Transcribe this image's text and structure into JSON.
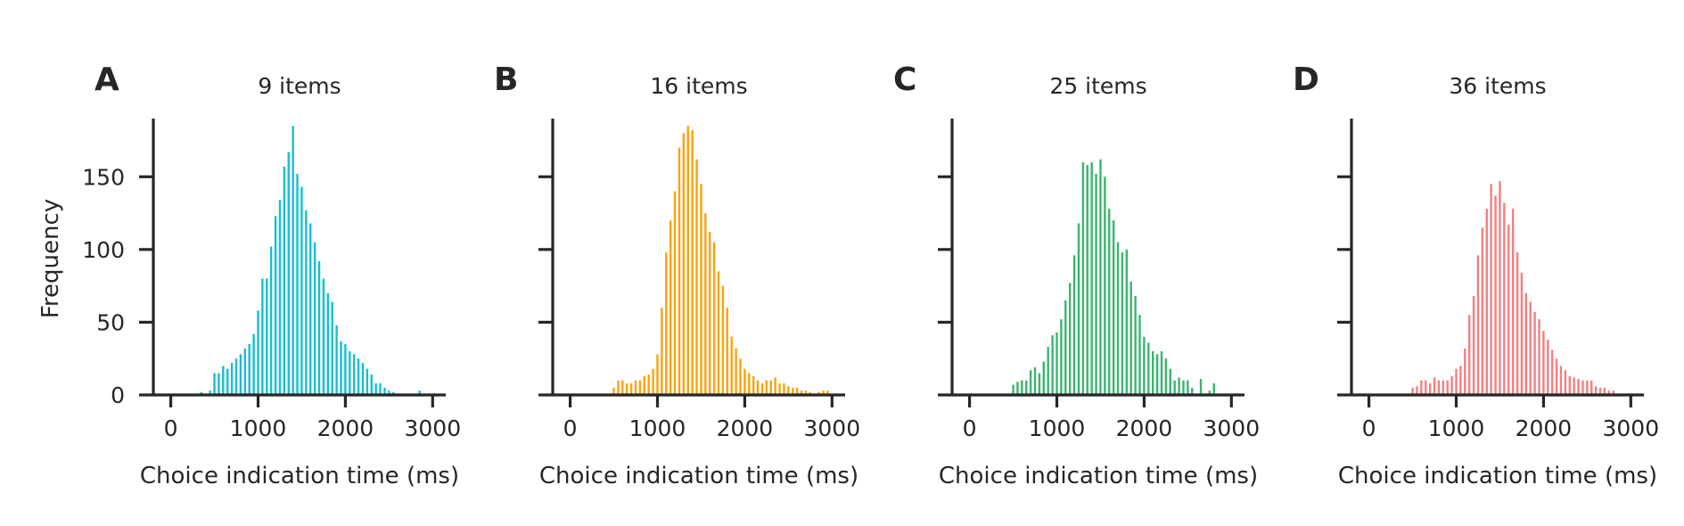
{
  "figure": {
    "ylabel": "Frequency",
    "xlabel": "Choice indication time (ms)"
  },
  "chart_data": [
    {
      "type": "bar",
      "panel": "A",
      "title": "9 items",
      "xlabel": "Choice indication time (ms)",
      "ylabel": "Frequency",
      "xlim": [
        -200,
        3150
      ],
      "ylim": [
        0,
        190
      ],
      "xticks": [
        0,
        1000,
        2000,
        3000
      ],
      "yticks": [
        0,
        50,
        100,
        150
      ],
      "grid": false,
      "color": "#17becf",
      "bin_width": 50,
      "x": [
        350,
        450,
        500,
        550,
        600,
        650,
        700,
        750,
        800,
        850,
        900,
        950,
        1000,
        1050,
        1100,
        1150,
        1200,
        1250,
        1300,
        1350,
        1400,
        1450,
        1500,
        1550,
        1600,
        1650,
        1700,
        1750,
        1800,
        1850,
        1900,
        1950,
        2000,
        2050,
        2100,
        2150,
        2200,
        2250,
        2300,
        2350,
        2400,
        2450,
        2500,
        2550,
        2850
      ],
      "values": [
        2,
        3,
        15,
        15,
        20,
        18,
        22,
        25,
        28,
        32,
        35,
        42,
        58,
        80,
        80,
        102,
        123,
        134,
        157,
        167,
        185,
        152,
        143,
        127,
        118,
        105,
        92,
        80,
        70,
        64,
        48,
        37,
        35,
        30,
        28,
        25,
        22,
        18,
        14,
        8,
        8,
        5,
        3,
        2,
        3
      ]
    },
    {
      "type": "bar",
      "panel": "B",
      "title": "16 items",
      "xlabel": "Choice indication time (ms)",
      "ylabel": "",
      "xlim": [
        -200,
        3150
      ],
      "ylim": [
        0,
        190
      ],
      "xticks": [
        0,
        1000,
        2000,
        3000
      ],
      "yticks": [
        0,
        50,
        100,
        150
      ],
      "grid": false,
      "color": "#f5a40f",
      "bin_width": 50,
      "x": [
        500,
        550,
        600,
        650,
        700,
        750,
        800,
        850,
        900,
        950,
        1000,
        1050,
        1100,
        1150,
        1200,
        1250,
        1300,
        1350,
        1400,
        1450,
        1500,
        1550,
        1600,
        1650,
        1700,
        1750,
        1800,
        1850,
        1900,
        1950,
        2000,
        2050,
        2100,
        2150,
        2200,
        2250,
        2300,
        2350,
        2400,
        2450,
        2500,
        2550,
        2600,
        2650,
        2700,
        2750,
        2850,
        2900,
        2950
      ],
      "values": [
        5,
        10,
        10,
        8,
        8,
        10,
        10,
        13,
        14,
        18,
        28,
        60,
        98,
        120,
        140,
        170,
        180,
        185,
        182,
        162,
        145,
        125,
        112,
        105,
        85,
        75,
        60,
        40,
        32,
        25,
        18,
        15,
        13,
        10,
        8,
        10,
        10,
        12,
        8,
        8,
        6,
        5,
        5,
        3,
        3,
        2,
        2,
        3,
        3
      ]
    },
    {
      "type": "bar",
      "panel": "C",
      "title": "25 items",
      "xlabel": "Choice indication time (ms)",
      "ylabel": "",
      "xlim": [
        -200,
        3150
      ],
      "ylim": [
        0,
        190
      ],
      "xticks": [
        0,
        1000,
        2000,
        3000
      ],
      "yticks": [
        0,
        50,
        100,
        150
      ],
      "grid": false,
      "color": "#3cb371",
      "bin_width": 50,
      "x": [
        500,
        550,
        600,
        650,
        700,
        750,
        800,
        850,
        900,
        950,
        1000,
        1050,
        1100,
        1150,
        1200,
        1250,
        1300,
        1350,
        1400,
        1450,
        1500,
        1550,
        1600,
        1650,
        1700,
        1750,
        1800,
        1850,
        1900,
        1950,
        2000,
        2050,
        2100,
        2150,
        2200,
        2250,
        2300,
        2350,
        2400,
        2450,
        2500,
        2550,
        2650,
        2750,
        2800
      ],
      "values": [
        7,
        9,
        10,
        10,
        17,
        19,
        15,
        23,
        33,
        41,
        43,
        52,
        65,
        77,
        96,
        118,
        160,
        158,
        160,
        152,
        162,
        150,
        128,
        120,
        105,
        98,
        100,
        78,
        68,
        55,
        40,
        36,
        30,
        28,
        30,
        25,
        18,
        10,
        12,
        10,
        10,
        5,
        11,
        3,
        8
      ]
    },
    {
      "type": "bar",
      "panel": "D",
      "title": "36 items",
      "xlabel": "Choice indication time (ms)",
      "ylabel": "",
      "xlim": [
        -200,
        3150
      ],
      "ylim": [
        0,
        190
      ],
      "xticks": [
        0,
        1000,
        2000,
        3000
      ],
      "yticks": [
        0,
        50,
        100,
        150
      ],
      "grid": false,
      "color": "#f08080",
      "bin_width": 50,
      "x": [
        500,
        550,
        600,
        650,
        700,
        750,
        800,
        850,
        900,
        950,
        1000,
        1050,
        1100,
        1150,
        1200,
        1250,
        1300,
        1350,
        1400,
        1450,
        1500,
        1550,
        1600,
        1650,
        1700,
        1750,
        1800,
        1850,
        1900,
        1950,
        2000,
        2050,
        2100,
        2150,
        2200,
        2250,
        2300,
        2350,
        2400,
        2450,
        2500,
        2550,
        2600,
        2650,
        2700,
        2750,
        2800,
        2850,
        2900
      ],
      "values": [
        5,
        6,
        10,
        10,
        8,
        12,
        10,
        10,
        10,
        13,
        18,
        20,
        32,
        55,
        68,
        96,
        115,
        128,
        145,
        137,
        147,
        132,
        117,
        128,
        98,
        84,
        70,
        64,
        57,
        52,
        44,
        38,
        31,
        25,
        20,
        17,
        13,
        12,
        11,
        10,
        10,
        10,
        6,
        5,
        5,
        3,
        3,
        1,
        1
      ]
    }
  ]
}
